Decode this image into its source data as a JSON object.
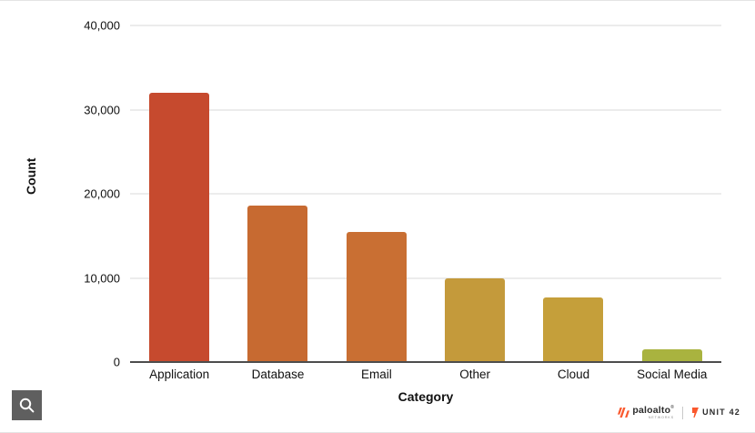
{
  "chart_data": {
    "type": "bar",
    "title": "",
    "xlabel": "Category",
    "ylabel": "Count",
    "categories": [
      "Application",
      "Database",
      "Email",
      "Other",
      "Cloud",
      "Social Media"
    ],
    "values": [
      32000,
      18600,
      15500,
      10000,
      7700,
      1500
    ],
    "bar_colors": [
      "#c64a2e",
      "#c76a31",
      "#c96f33",
      "#c49a3b",
      "#c59f3a",
      "#a9b33f"
    ],
    "ylim": [
      0,
      40000
    ],
    "yticks": [
      0,
      10000,
      20000,
      30000,
      40000
    ],
    "ytick_labels": [
      "0",
      "10,000",
      "20,000",
      "30,000",
      "40,000"
    ],
    "grid": true,
    "legend": false,
    "gridline_color": "#d9d9d9",
    "axis_line_color": "#4d4d4d"
  },
  "toolbar": {
    "zoom_icon": "magnifier"
  },
  "footer": {
    "brand1": "paloalto",
    "brand1_tm": "®",
    "brand1_sub": "NETWORKS",
    "brand2": "UNIT 42",
    "accent_color": "#fa582d"
  }
}
